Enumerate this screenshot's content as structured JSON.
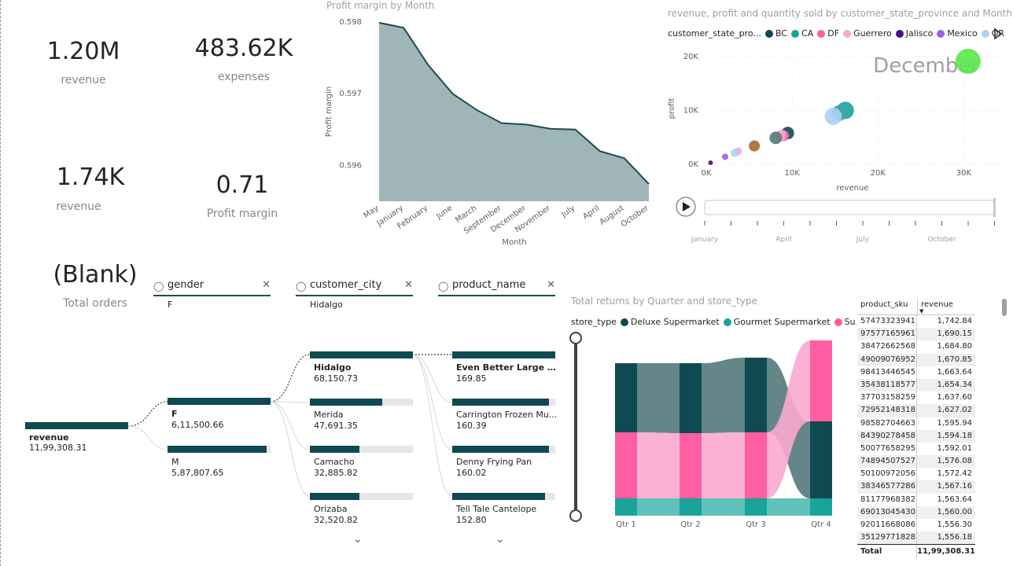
{
  "kpis": [
    {
      "value": "1.20M",
      "label": "revenue"
    },
    {
      "value": "483.62K",
      "label": "expenses"
    },
    {
      "value": "1.74K",
      "label": "revenue"
    },
    {
      "value": "0.71",
      "label": "Profit margin"
    },
    {
      "value": "(Blank)",
      "label": "Total orders"
    }
  ],
  "area_chart": {
    "title": "Profit margin by Month",
    "xlabel": "Month",
    "ylabel": "Profit margin",
    "ytick_labels": [
      "0.598",
      "0.597",
      "0.596"
    ],
    "color": "#9fb5b8",
    "line_color": "#1f4e4e"
  },
  "scatter_chart": {
    "title": "revenue, profit and quantity sold by customer_state_province and Month",
    "legend_title": "customer_state_pro...",
    "legend": [
      {
        "name": "BC",
        "color": "#0f4a52"
      },
      {
        "name": "CA",
        "color": "#1aa39a"
      },
      {
        "name": "DF",
        "color": "#ff5fa2"
      },
      {
        "name": "Guerrero",
        "color": "#f9a8d0"
      },
      {
        "name": "Jalisco",
        "color": "#4b0b8a"
      },
      {
        "name": "Mexico",
        "color": "#a35ee0"
      },
      {
        "name": "OR",
        "color": "#a9d2f5"
      }
    ],
    "xlabel": "revenue",
    "ylabel": "profit",
    "xtick_labels": [
      "0K",
      "10K",
      "20K",
      "30K"
    ],
    "ytick_labels": [
      "20K",
      "10K",
      "0K"
    ],
    "watermark": "December",
    "play_axis_labels": [
      "January",
      "April",
      "July",
      "October"
    ]
  },
  "chart_data": [
    {
      "type": "area",
      "title": "Profit margin by Month",
      "xlabel": "Month",
      "ylabel": "Profit margin",
      "categories": [
        "May",
        "January",
        "February",
        "June",
        "March",
        "September",
        "December",
        "November",
        "July",
        "April",
        "August",
        "October"
      ],
      "values": [
        0.59799,
        0.59792,
        0.5974,
        0.597,
        0.59677,
        0.59659,
        0.59657,
        0.59651,
        0.5965,
        0.5962,
        0.5961,
        0.59574
      ],
      "ylim": [
        0.5955,
        0.598
      ]
    },
    {
      "type": "scatter",
      "title": "revenue, profit and quantity sold by customer_state_province and Month",
      "xlabel": "revenue",
      "ylabel": "profit",
      "xlim": [
        0,
        35000
      ],
      "ylim": [
        0,
        21000
      ],
      "points": [
        {
          "x": 30500,
          "y": 19100,
          "size": 16,
          "color": "#58e84a"
        },
        {
          "x": 16200,
          "y": 10000,
          "size": 11,
          "color": "#1aa39a"
        },
        {
          "x": 15500,
          "y": 9500,
          "size": 10,
          "color": "#3aa6a8"
        },
        {
          "x": 14800,
          "y": 8900,
          "size": 11,
          "color": "#a9d2f5"
        },
        {
          "x": 9500,
          "y": 5800,
          "size": 8,
          "color": "#0f4a52"
        },
        {
          "x": 9000,
          "y": 5300,
          "size": 7,
          "color": "#ff5fa2"
        },
        {
          "x": 8700,
          "y": 5400,
          "size": 7,
          "color": "#f9a8d0"
        },
        {
          "x": 8100,
          "y": 4900,
          "size": 8,
          "color": "#53797c"
        },
        {
          "x": 5600,
          "y": 3400,
          "size": 7,
          "color": "#a8692a"
        },
        {
          "x": 3700,
          "y": 2400,
          "size": 5,
          "color": "#f9a8d0"
        },
        {
          "x": 3300,
          "y": 2100,
          "size": 5,
          "color": "#a9d2f5"
        },
        {
          "x": 2200,
          "y": 1400,
          "size": 4,
          "color": "#a35ee0"
        },
        {
          "x": 500,
          "y": 300,
          "size": 3,
          "color": "#4b0b8a"
        }
      ]
    },
    {
      "type": "area",
      "title": "Total returns by Quarter and store_type",
      "categories": [
        "Qtr 1",
        "Qtr 2",
        "Qtr 3",
        "Qtr 4"
      ],
      "series": [
        {
          "name": "Deluxe Supermarket",
          "values": [
            0.49,
            0.5,
            0.51,
            0.49
          ]
        },
        {
          "name": "Supermarket",
          "values": [
            0.41,
            0.41,
            0.41,
            0.51
          ]
        },
        {
          "name": "Gourmet Supermarket",
          "values": [
            0.1,
            0.1,
            0.1,
            0.1
          ]
        }
      ]
    }
  ],
  "decomp_tree": {
    "headers": [
      {
        "name": "gender",
        "sub": "F"
      },
      {
        "name": "customer_city",
        "sub": "Hidalgo"
      },
      {
        "name": "product_name",
        "sub": ""
      }
    ],
    "root": {
      "label": "revenue",
      "value": "11,99,308.31"
    },
    "gender_nodes": [
      {
        "label": "F",
        "value": "6,11,500.66",
        "fill": 1.0
      },
      {
        "label": "M",
        "value": "5,87,807.65",
        "fill": 0.96
      }
    ],
    "city_nodes": [
      {
        "label": "Hidalgo",
        "value": "68,150.73",
        "fill": 1.0
      },
      {
        "label": "Merida",
        "value": "47,691.35",
        "fill": 0.7
      },
      {
        "label": "Camacho",
        "value": "32,885.82",
        "fill": 0.48
      },
      {
        "label": "Orizaba",
        "value": "32,520.82",
        "fill": 0.48
      }
    ],
    "product_nodes": [
      {
        "label": "Even Better Large Cu...",
        "value": "169.85",
        "fill": 1.0
      },
      {
        "label": "Carrington Frozen Mu...",
        "value": "160.39",
        "fill": 0.94
      },
      {
        "label": "Denny Frying Pan",
        "value": "160.02",
        "fill": 0.94
      },
      {
        "label": "Tell Tale Cantelope",
        "value": "152.80",
        "fill": 0.9
      }
    ]
  },
  "sankey": {
    "title": "Total returns by Quarter and store_type",
    "legend_title": "store_type",
    "legend": [
      {
        "name": "Deluxe Supermarket",
        "color": "#0f4a52"
      },
      {
        "name": "Gourmet Supermarket",
        "color": "#1aa39a"
      },
      {
        "name": "Supermarket",
        "color": "#ff5fa2"
      }
    ],
    "quarters": [
      "Qtr 1",
      "Qtr 2",
      "Qtr 3",
      "Qtr 4"
    ]
  },
  "table": {
    "headers": [
      "product_sku",
      "revenue"
    ],
    "rows": [
      [
        "57473323941",
        "1,742.84"
      ],
      [
        "97577165961",
        "1,690.15"
      ],
      [
        "38472662568",
        "1,684.80"
      ],
      [
        "49009076952",
        "1,670.85"
      ],
      [
        "98413446545",
        "1,663.64"
      ],
      [
        "35438118577",
        "1,654.34"
      ],
      [
        "37703158259",
        "1,637.60"
      ],
      [
        "72952148318",
        "1,627.02"
      ],
      [
        "98582704663",
        "1,595.94"
      ],
      [
        "84390278458",
        "1,594.18"
      ],
      [
        "50077658295",
        "1,592.01"
      ],
      [
        "74894507527",
        "1,576.08"
      ],
      [
        "50100972056",
        "1,572.42"
      ],
      [
        "38346577286",
        "1,567.16"
      ],
      [
        "81177968382",
        "1,563.64"
      ],
      [
        "69013045430",
        "1,560.00"
      ],
      [
        "92011668086",
        "1,556.30"
      ],
      [
        "35129771828",
        "1,556.18"
      ]
    ],
    "total_label": "Total",
    "total_value": "11,99,308.31"
  }
}
